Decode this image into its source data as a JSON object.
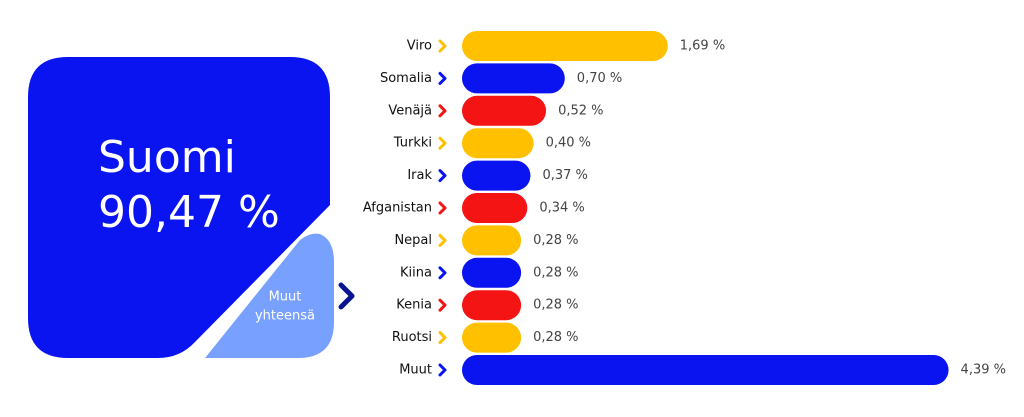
{
  "chart_data": {
    "type": "bar",
    "categories": [
      "Viro",
      "Somalia",
      "Venäjä",
      "Turkki",
      "Irak",
      "Afganistan",
      "Nepal",
      "Kiina",
      "Kenia",
      "Ruotsi",
      "Muut"
    ],
    "values": [
      1.69,
      0.7,
      0.52,
      0.4,
      0.37,
      0.34,
      0.28,
      0.28,
      0.28,
      0.28,
      4.39
    ],
    "value_labels": [
      "1,69 %",
      "0,70 %",
      "0,52 %",
      "0,40 %",
      "0,37 %",
      "0,34 %",
      "0,28 %",
      "0,28 %",
      "0,28 %",
      "0,28 %",
      "4,39 %"
    ],
    "colors": [
      "#ffc000",
      "#0a14f0",
      "#f51414",
      "#ffc000",
      "#0a14f0",
      "#f51414",
      "#ffc000",
      "#0a14f0",
      "#f51414",
      "#ffc000",
      "#0a14f0"
    ],
    "main": {
      "name": "Suomi",
      "value": 90.47,
      "value_label": "90,47 %",
      "color": "#0a14f0"
    },
    "rest_label": [
      "Muut",
      "yhteensä"
    ],
    "rest_color": "#78a0ff"
  }
}
